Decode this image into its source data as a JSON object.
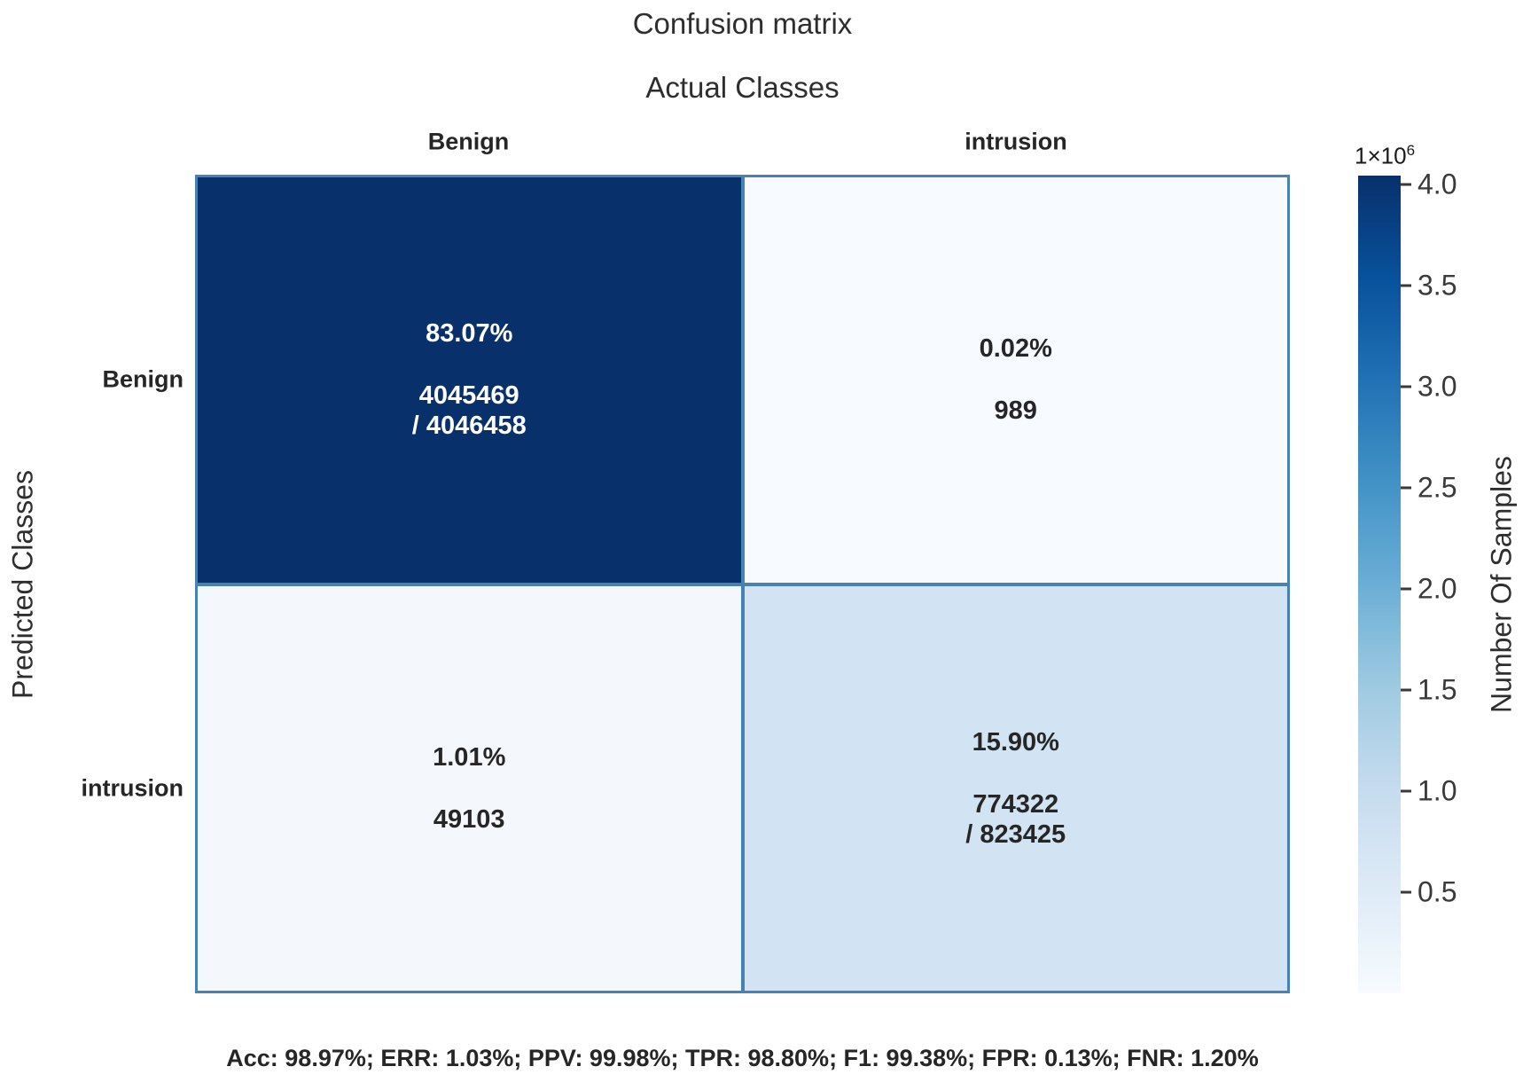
{
  "title": "Confusion matrix",
  "axes": {
    "x": "Actual Classes",
    "y": "Predicted Classes"
  },
  "column_headers": [
    "Benign",
    "intrusion"
  ],
  "row_headers": [
    "Benign",
    "intrusion"
  ],
  "cells": [
    {
      "pct": "83.07%",
      "count": "4045469",
      "total": "/ 4046458"
    },
    {
      "pct": "0.02%",
      "count": "989"
    },
    {
      "pct": "1.01%",
      "count": "49103"
    },
    {
      "pct": "15.90%",
      "count": "774322",
      "total": "/ 823425"
    }
  ],
  "colorbar": {
    "scale_base": "1×10",
    "scale_exp": "6",
    "ticks": [
      "4.0",
      "3.5",
      "3.0",
      "2.5",
      "2.0",
      "1.5",
      "1.0",
      "0.5"
    ],
    "label": "Number Of Samples"
  },
  "footer": "Acc: 98.97%; ERR: 1.03%; PPV: 99.98%; TPR: 98.80%; F1: 99.38%; FPR: 0.13%; FNR: 1.20%",
  "colors": {
    "cell_benign_benign": "#08306b",
    "cell_benign_intrusion": "#f7fbff",
    "cell_intrusion_benign": "#f4f8fc",
    "cell_intrusion_intrusion": "#d2e3f3",
    "grid_line": "#4682b4",
    "cell_text_dark_bg": "#ffffff",
    "cell_text_light_bg": "#262626"
  },
  "chart_data": {
    "type": "heatmap",
    "title": "Confusion matrix",
    "xlabel": "Actual Classes",
    "ylabel": "Predicted Classes",
    "x_categories": [
      "Benign",
      "intrusion"
    ],
    "y_categories": [
      "Benign",
      "intrusion"
    ],
    "counts": [
      [
        4045469,
        989
      ],
      [
        49103,
        774322
      ]
    ],
    "percentages": [
      [
        83.07,
        0.02
      ],
      [
        1.01,
        15.9
      ]
    ],
    "actual_class_totals": {
      "Benign": 4046458,
      "intrusion": 823425
    },
    "colorbar": {
      "label": "Number Of Samples",
      "scale_factor": 1000000,
      "tick_values": [
        4.0,
        3.5,
        3.0,
        2.5,
        2.0,
        1.5,
        1.0,
        0.5
      ],
      "vmin": 0,
      "vmax": 4045469,
      "colormap": "Blues",
      "position": "right"
    },
    "metrics": {
      "Acc": "98.97%",
      "ERR": "1.03%",
      "PPV": "99.98%",
      "TPR": "98.80%",
      "F1": "99.38%",
      "FPR": "0.13%",
      "FNR": "1.20%"
    },
    "grid": false
  }
}
